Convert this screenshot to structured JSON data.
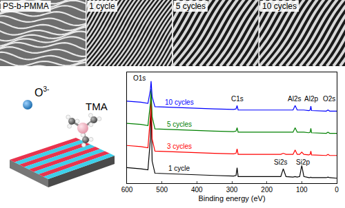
{
  "image_labels": [
    "PS-b-PMMA",
    "1 cycle",
    "5 cycles",
    "10 cycles"
  ],
  "schematic": {
    "oxidant": {
      "text": "O",
      "superscript": "3-"
    },
    "precursor": "TMA"
  },
  "chart_data": {
    "type": "line",
    "x_label": "Binding energy (eV)",
    "x": [
      600,
      560,
      540,
      533,
      531,
      528,
      520,
      450,
      350,
      295,
      288,
      285,
      282,
      220,
      160,
      153,
      145,
      125,
      119,
      113,
      106,
      100,
      94,
      80,
      76,
      74,
      72,
      30,
      25,
      20,
      0
    ],
    "series": [
      {
        "name": "1 cycle",
        "color": "#000000",
        "values": [
          14,
          13,
          12,
          40,
          72,
          20,
          9,
          8,
          7,
          6.5,
          7,
          14,
          6,
          6,
          6,
          13,
          6,
          5.5,
          6,
          5.5,
          6,
          16,
          6,
          5,
          5,
          5.5,
          5,
          5,
          5.5,
          5,
          4.5
        ]
      },
      {
        "name": "3 cycles",
        "color": "#ff0000",
        "values": [
          34,
          33,
          32,
          60,
          80,
          40,
          29,
          28,
          27,
          26.5,
          27,
          31,
          26,
          26,
          26,
          27,
          26,
          26,
          30,
          26,
          26,
          28,
          26,
          25.5,
          26,
          29,
          25.5,
          25,
          26,
          25,
          25
        ]
      },
      {
        "name": "5 cycles",
        "color": "#008000",
        "values": [
          54,
          53,
          52,
          72,
          85,
          60,
          49,
          48,
          47,
          46.5,
          47,
          50,
          46,
          46,
          46,
          46,
          46,
          46,
          50,
          46,
          46,
          46,
          46,
          45.5,
          46,
          49.5,
          45.5,
          45,
          46,
          45,
          45
        ]
      },
      {
        "name": "10 cycles",
        "color": "#0000ff",
        "values": [
          74,
          73,
          72,
          84,
          92,
          78,
          69,
          68,
          67,
          66.5,
          67,
          70,
          66,
          66,
          66,
          66,
          66,
          66,
          70,
          66,
          66,
          66,
          66,
          65.5,
          66,
          69.5,
          65.5,
          65,
          66,
          65,
          65
        ]
      }
    ],
    "annotations": [
      {
        "text": "O1s",
        "x": 565,
        "y": 95
      },
      {
        "text": "C1s",
        "x": 285,
        "y": 76
      },
      {
        "text": "Al2s",
        "x": 122,
        "y": 76
      },
      {
        "text": "Al2p",
        "x": 74,
        "y": 76
      },
      {
        "text": "O2s",
        "x": 22,
        "y": 76
      },
      {
        "text": "Si2s",
        "x": 160,
        "y": 19
      },
      {
        "text": "Si2p",
        "x": 97,
        "y": 19
      }
    ],
    "xlim": [
      600,
      0
    ],
    "xticks": [
      600,
      500,
      400,
      300,
      200,
      100,
      0
    ],
    "ylim": [
      0,
      100
    ],
    "yticks": [],
    "tick_labels": "x",
    "grid": false
  }
}
